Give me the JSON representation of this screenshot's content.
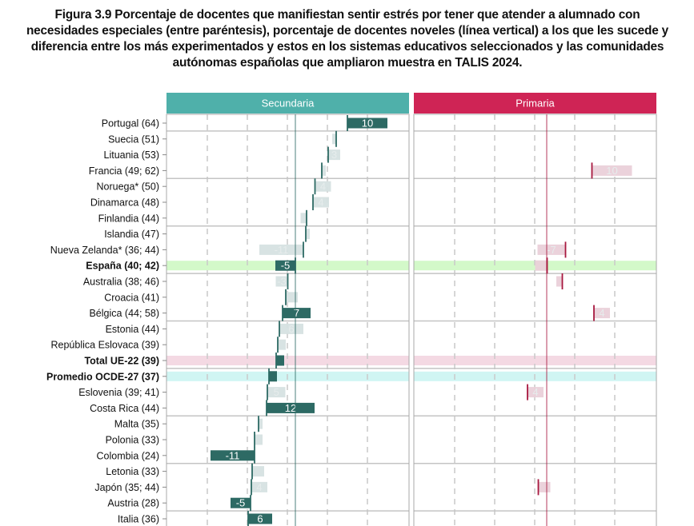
{
  "title": "Figura 3.9 Porcentaje de docentes que manifiestan sentir estrés por tener que atender a alumnado con necesidades especiales (entre paréntesis), porcentaje de docentes noveles (línea vertical) a los que les sucede y diferencia entre los más experimentados y estos en los sistemas educativos seleccionados y las comunidades autónomas españolas que ampliaron muestra en TALIS 2024.",
  "chart_data": {
    "type": "bar",
    "panels": [
      {
        "key": "secundaria",
        "title": "Secundaria",
        "color": "#4fb0aa",
        "tick_color": "#2d6a64",
        "sig_color": "#2d6a64",
        "nonsig_color": "#d6e2e2",
        "reference_line": 42
      },
      {
        "key": "primaria",
        "title": "Primaria",
        "color": "#cf2455",
        "tick_color": "#a8183f",
        "sig_color": "#a8183f",
        "nonsig_color": "#ead0d9",
        "reference_line": 43
      }
    ],
    "xlim": [
      14,
      72
    ],
    "gridlines": [
      20,
      30,
      40,
      50,
      60
    ],
    "grid": true,
    "highlight_colors": {
      "green": "#d3f9c9",
      "pink": "#f4d9e3",
      "cyan": "#d0f5f3"
    },
    "rows": [
      {
        "label": "Portugal (64)",
        "secundaria": {
          "novice": 55,
          "diff": 10,
          "sig": true,
          "text": "10"
        }
      },
      {
        "label": "Suecia (51)",
        "secundaria": {
          "novice": 52.2,
          "diff": -1,
          "sig": false
        }
      },
      {
        "label": "Lituania (53)",
        "secundaria": {
          "novice": 50.2,
          "diff": 3,
          "sig": false,
          "text": "3"
        }
      },
      {
        "label": "Francia (49; 62)",
        "secundaria": {
          "novice": 48.6,
          "diff": 1,
          "sig": false
        },
        "primaria": {
          "novice": 54.3,
          "diff": 10,
          "sig": false,
          "text": "10"
        }
      },
      {
        "label": "Noruega* (50)",
        "secundaria": {
          "novice": 46.9,
          "diff": 4,
          "sig": false,
          "text": "4"
        }
      },
      {
        "label": "Dinamarca (48)",
        "secundaria": {
          "novice": 46.4,
          "diff": 4,
          "sig": false,
          "text": "4"
        }
      },
      {
        "label": "Finlandia (44)",
        "secundaria": {
          "novice": 44.8,
          "diff": -1.5,
          "sig": false
        }
      },
      {
        "label": "Islandia (47)",
        "secundaria": {
          "novice": 44.6,
          "diff": 1,
          "sig": false
        }
      },
      {
        "label": "Nueva Zelanda* (36; 44)",
        "secundaria": {
          "novice": 44,
          "diff": -11,
          "sig": false,
          "text": "-11"
        },
        "primaria": {
          "novice": 47.7,
          "diff": -7,
          "sig": false,
          "text": "-7"
        }
      },
      {
        "label": "España (40; 42)",
        "bold": true,
        "highlight": "green",
        "secundaria": {
          "novice": 42,
          "diff": -5,
          "sig": true,
          "text": "-5"
        },
        "primaria": {
          "novice": 43.1,
          "diff": -3,
          "sig": false
        }
      },
      {
        "label": "Australia (38; 46)",
        "secundaria": {
          "novice": 40.1,
          "diff": -3,
          "sig": false,
          "text": "-3"
        },
        "primaria": {
          "novice": 46.9,
          "diff": -1.5,
          "sig": false
        }
      },
      {
        "label": "Croacia (41)",
        "secundaria": {
          "novice": 39.6,
          "diff": 3,
          "sig": false
        }
      },
      {
        "label": "Bélgica (44; 58)",
        "secundaria": {
          "novice": 38.8,
          "diff": 7,
          "sig": true,
          "text": "7"
        },
        "primaria": {
          "novice": 54.8,
          "diff": 4,
          "sig": false,
          "text": "4"
        }
      },
      {
        "label": "Estonia (44)",
        "secundaria": {
          "novice": 38,
          "diff": 6,
          "sig": false,
          "text": "6"
        }
      },
      {
        "label": "República Eslovaca (39)",
        "secundaria": {
          "novice": 37.6,
          "diff": 2,
          "sig": false
        }
      },
      {
        "label": "Total UE-22 (39)",
        "bold": true,
        "highlight": "pink",
        "secundaria": {
          "novice": 37.2,
          "diff": 2,
          "sig": true
        }
      },
      {
        "label": "Promedio OCDE-27 (37)",
        "bold": true,
        "highlight": "cyan",
        "secundaria": {
          "novice": 35.4,
          "diff": 2,
          "sig": true
        }
      },
      {
        "label": "Eslovenia (39; 41)",
        "secundaria": {
          "novice": 35,
          "diff": 4.5,
          "sig": false,
          "text": "5"
        },
        "primaria": {
          "novice": 38.2,
          "diff": 4,
          "sig": false,
          "text": "4"
        }
      },
      {
        "label": "Costa Rica (44)",
        "secundaria": {
          "novice": 34.8,
          "diff": 12,
          "sig": true,
          "text": "12"
        }
      },
      {
        "label": "Malta (35)",
        "secundaria": {
          "novice": 32.8,
          "diff": 1,
          "sig": false
        }
      },
      {
        "label": "Polonia (33)",
        "secundaria": {
          "novice": 31.8,
          "diff": 2,
          "sig": false
        }
      },
      {
        "label": "Colombia (24)",
        "secundaria": {
          "novice": 31.8,
          "diff": -11,
          "sig": true,
          "text": "-11"
        }
      },
      {
        "label": "Letonia (33)",
        "secundaria": {
          "novice": 31.2,
          "diff": 3,
          "sig": false
        }
      },
      {
        "label": "Japón (35; 44)",
        "secundaria": {
          "novice": 31,
          "diff": 4,
          "sig": false,
          "text": "4"
        },
        "primaria": {
          "novice": 40.9,
          "diff": 3,
          "sig": false
        }
      },
      {
        "label": "Austria (28)",
        "secundaria": {
          "novice": 30.8,
          "diff": -5,
          "sig": true,
          "text": "-5"
        }
      },
      {
        "label": "Italia (36)",
        "secundaria": {
          "novice": 30.2,
          "diff": 6,
          "sig": true,
          "text": "6"
        }
      }
    ]
  }
}
